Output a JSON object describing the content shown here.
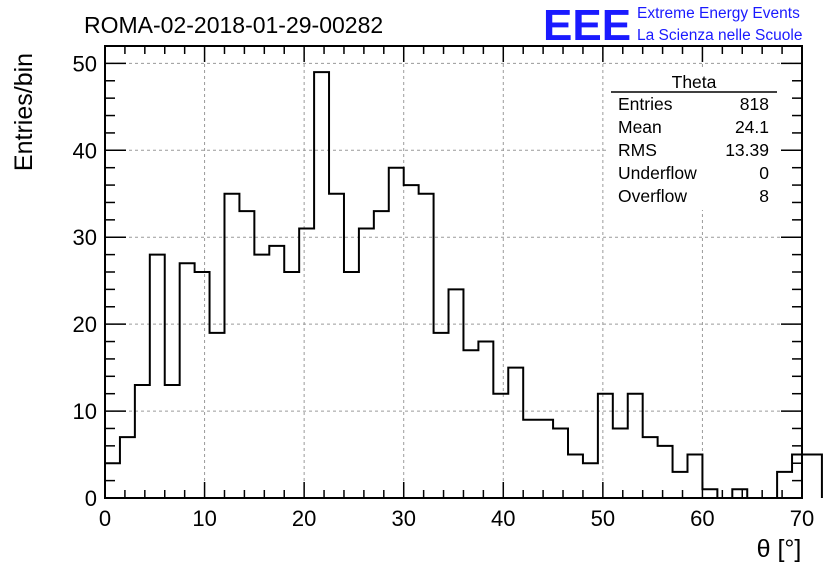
{
  "chart_data": {
    "type": "bar",
    "title": "ROMA-02-2018-01-29-00282",
    "xlabel": "θ [°]",
    "ylabel": "Entries/bin",
    "xlim": [
      0,
      70
    ],
    "ylim": [
      0,
      52
    ],
    "bin_width": 1.5,
    "x_ticks": [
      "0",
      "10",
      "20",
      "30",
      "40",
      "50",
      "60",
      "70"
    ],
    "y_ticks": [
      "0",
      "10",
      "20",
      "30",
      "40",
      "50"
    ],
    "grid": true,
    "values": [
      4,
      7,
      13,
      28,
      13,
      27,
      26,
      19,
      35,
      33,
      28,
      29,
      26,
      31,
      49,
      35,
      26,
      31,
      33,
      38,
      36,
      35,
      19,
      24,
      17,
      18,
      12,
      15,
      9,
      9,
      8,
      5,
      4,
      12,
      8,
      12,
      7,
      6,
      3,
      5,
      1,
      0,
      1,
      0,
      0,
      3,
      5,
      5
    ],
    "stats_box": {
      "name": "Theta",
      "rows": [
        {
          "label": "Entries",
          "value": "818"
        },
        {
          "label": "Mean",
          "value": "24.1"
        },
        {
          "label": "RMS",
          "value": "13.39"
        },
        {
          "label": "Underflow",
          "value": "0"
        },
        {
          "label": "Overflow",
          "value": "8"
        }
      ]
    },
    "line_color": "#000000"
  },
  "logo": {
    "mark": "EEE",
    "line1": "Extreme Energy Events",
    "line2": "La Scienza nelle Scuole",
    "color": "#1a1aff"
  }
}
